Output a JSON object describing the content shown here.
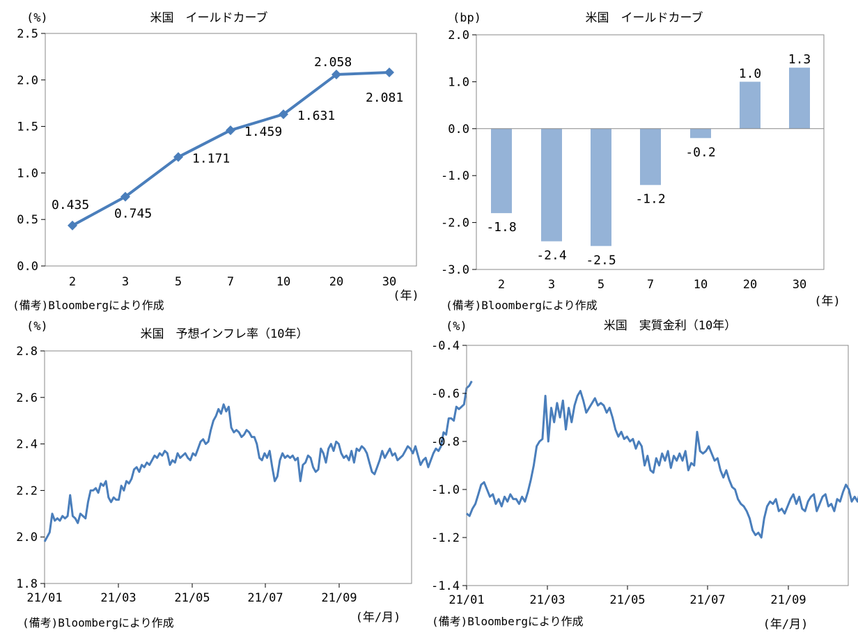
{
  "notes": {
    "tl": "(備考)Bloombergにより作成",
    "tr": "(備考)Bloombergにより作成",
    "bl": "(備考)Bloombergにより作成",
    "br": "(備考)Bloombergにより作成"
  },
  "chart_data": [
    {
      "type": "line",
      "title": "米国　イールドカーブ",
      "ylabel": "(%)",
      "xlabel": "(年)",
      "categories": [
        "2",
        "3",
        "5",
        "7",
        "10",
        "20",
        "30"
      ],
      "values": [
        0.435,
        0.745,
        1.171,
        1.459,
        1.631,
        2.058,
        2.081
      ],
      "data_labels": [
        "0.435",
        "0.745",
        "1.171",
        "1.459",
        "1.631",
        "2.058",
        "2.081"
      ],
      "ylim": [
        0,
        2.5
      ],
      "yticks": [
        "0.0",
        "0.5",
        "1.0",
        "1.5",
        "2.0",
        "2.5"
      ],
      "grid": false,
      "color": "#4a7ebb",
      "marker": "diamond"
    },
    {
      "type": "bar",
      "title": "米国　イールドカーブ",
      "ylabel": "(bp)",
      "xlabel": "(年)",
      "categories": [
        "2",
        "3",
        "5",
        "7",
        "10",
        "20",
        "30"
      ],
      "values": [
        -1.8,
        -2.4,
        -2.5,
        -1.2,
        -0.2,
        1.0,
        1.3
      ],
      "data_labels": [
        "-1.8",
        "-2.4",
        "-2.5",
        "-1.2",
        "-0.2",
        "1.0",
        "1.3"
      ],
      "ylim": [
        -3,
        2
      ],
      "yticks": [
        "-3.0",
        "-2.0",
        "-1.0",
        "0.0",
        "1.0",
        "2.0"
      ],
      "grid": false,
      "color": "#95b3d7"
    },
    {
      "type": "line",
      "title": "米国　予想インフレ率（10年）",
      "ylabel": "(%)",
      "xlabel": "(年/月)",
      "x_ticks": [
        "21/01",
        "21/03",
        "21/05",
        "21/07",
        "21/09"
      ],
      "xlim_months": [
        0,
        11.6
      ],
      "ylim": [
        1.8,
        2.8
      ],
      "yticks": [
        "1.8",
        "2.0",
        "2.2",
        "2.4",
        "2.6",
        "2.8"
      ],
      "grid": false,
      "color": "#4a7ebb",
      "values": [
        1.98,
        2.0,
        2.02,
        2.1,
        2.07,
        2.08,
        2.07,
        2.09,
        2.08,
        2.09,
        2.18,
        2.09,
        2.08,
        2.06,
        2.1,
        2.09,
        2.08,
        2.15,
        2.2,
        2.2,
        2.21,
        2.19,
        2.23,
        2.22,
        2.24,
        2.17,
        2.15,
        2.17,
        2.16,
        2.16,
        2.22,
        2.2,
        2.24,
        2.23,
        2.25,
        2.29,
        2.3,
        2.28,
        2.31,
        2.3,
        2.32,
        2.31,
        2.33,
        2.35,
        2.34,
        2.36,
        2.35,
        2.37,
        2.36,
        2.31,
        2.33,
        2.32,
        2.36,
        2.34,
        2.35,
        2.36,
        2.34,
        2.33,
        2.36,
        2.35,
        2.38,
        2.41,
        2.42,
        2.4,
        2.41,
        2.46,
        2.5,
        2.52,
        2.55,
        2.53,
        2.57,
        2.54,
        2.56,
        2.47,
        2.45,
        2.46,
        2.45,
        2.43,
        2.44,
        2.46,
        2.45,
        2.43,
        2.43,
        2.4,
        2.34,
        2.33,
        2.36,
        2.34,
        2.37,
        2.3,
        2.24,
        2.26,
        2.33,
        2.36,
        2.34,
        2.35,
        2.34,
        2.35,
        2.33,
        2.34,
        2.24,
        2.31,
        2.32,
        2.35,
        2.34,
        2.3,
        2.28,
        2.29,
        2.38,
        2.36,
        2.32,
        2.38,
        2.4,
        2.37,
        2.41,
        2.4,
        2.36,
        2.34,
        2.35,
        2.33,
        2.37,
        2.32,
        2.38,
        2.37,
        2.39,
        2.38,
        2.36,
        2.32,
        2.28,
        2.27,
        2.3,
        2.33,
        2.37,
        2.34,
        2.36,
        2.38,
        2.35,
        2.36,
        2.33,
        2.34,
        2.35,
        2.37,
        2.39,
        2.38,
        2.36,
        2.39,
        2.35,
        2.31,
        2.33,
        2.34,
        2.3,
        2.33,
        2.36,
        2.38,
        2.37,
        2.39,
        2.45,
        2.44,
        2.51,
        2.51,
        2.5,
        2.56,
        2.55,
        2.56,
        2.57,
        2.64,
        2.65,
        2.67
      ]
    },
    {
      "type": "line",
      "title": "米国　実質金利（10年）",
      "ylabel": "(%)",
      "xlabel": "(年/月)",
      "x_ticks": [
        "21/01",
        "21/03",
        "21/05",
        "21/07",
        "21/09"
      ],
      "xlim_months": [
        0,
        11.1
      ],
      "ylim": [
        -1.4,
        -0.4
      ],
      "yticks": [
        "-1.4",
        "-1.2",
        "-1.0",
        "-0.8",
        "-0.6",
        "-0.4"
      ],
      "grid": false,
      "color": "#4a7ebb",
      "values": [
        -1.1,
        -1.11,
        -1.08,
        -1.06,
        -1.02,
        -0.98,
        -0.97,
        -1.0,
        -1.03,
        -1.02,
        -1.06,
        -1.04,
        -1.07,
        -1.03,
        -1.05,
        -1.02,
        -1.04,
        -1.04,
        -1.06,
        -1.03,
        -1.05,
        -1.01,
        -0.96,
        -0.9,
        -0.82,
        -0.8,
        -0.79,
        -0.61,
        -0.8,
        -0.66,
        -0.72,
        -0.64,
        -0.7,
        -0.63,
        -0.75,
        -0.66,
        -0.72,
        -0.65,
        -0.61,
        -0.59,
        -0.63,
        -0.68,
        -0.66,
        -0.64,
        -0.62,
        -0.65,
        -0.64,
        -0.65,
        -0.68,
        -0.66,
        -0.7,
        -0.75,
        -0.78,
        -0.76,
        -0.79,
        -0.78,
        -0.8,
        -0.79,
        -0.83,
        -0.8,
        -0.82,
        -0.9,
        -0.86,
        -0.92,
        -0.93,
        -0.87,
        -0.9,
        -0.85,
        -0.88,
        -0.84,
        -0.91,
        -0.86,
        -0.88,
        -0.85,
        -0.88,
        -0.84,
        -0.92,
        -0.89,
        -0.9,
        -0.76,
        -0.84,
        -0.85,
        -0.84,
        -0.82,
        -0.85,
        -0.88,
        -0.87,
        -0.92,
        -0.95,
        -0.92,
        -0.96,
        -0.99,
        -1.0,
        -1.04,
        -1.06,
        -1.07,
        -1.09,
        -1.12,
        -1.17,
        -1.19,
        -1.18,
        -1.2,
        -1.12,
        -1.07,
        -1.05,
        -1.06,
        -1.04,
        -1.09,
        -1.08,
        -1.1,
        -1.07,
        -1.04,
        -1.02,
        -1.06,
        -1.03,
        -1.08,
        -1.09,
        -1.05,
        -1.03,
        -1.02,
        -1.09,
        -1.06,
        -1.03,
        -1.02,
        -1.07,
        -1.06,
        -1.09,
        -1.04,
        -1.05,
        -1.01,
        -0.98,
        -1.0,
        -1.05,
        -1.03,
        -1.05,
        -1.0,
        -0.96,
        -0.89,
        -0.9,
        -0.86,
        -0.88,
        -0.92,
        -0.94,
        -0.9,
        -0.9,
        -0.91,
        -0.92,
        -0.98,
        -1.02,
        -0.96,
        -0.92,
        -0.95,
        -1.02,
        -1.04
      ]
    }
  ]
}
